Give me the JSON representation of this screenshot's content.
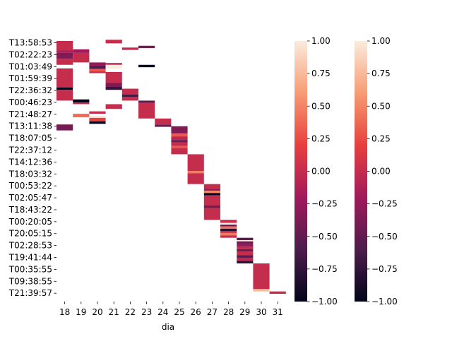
{
  "chart_data": {
    "type": "heatmap",
    "xlabel": "dia",
    "ylabel": "",
    "x_categories": [
      "18",
      "19",
      "20",
      "21",
      "22",
      "23",
      "24",
      "25",
      "26",
      "27",
      "28",
      "29",
      "30",
      "31"
    ],
    "y_tick_labels": [
      "T13:58:53",
      "T02:22:23",
      "T01:03:49",
      "T01:59:39",
      "T22:36:32",
      "T00:46:23",
      "T21:48:27",
      "T13:11:38",
      "T18:07:05",
      "T22:37:12",
      "T14:12:36",
      "T18:03:32",
      "T00:53:22",
      "T02:05:47",
      "T18:43:22",
      "T00:20:05",
      "T20:05:15",
      "T02:28:53",
      "T19:41:44",
      "T00:35:55",
      "T09:38:55",
      "T21:39:57"
    ],
    "value_range": [
      -1.0,
      1.0
    ],
    "colorbar_ticks": [
      "1.00",
      "0.75",
      "0.50",
      "0.25",
      "0.00",
      "−0.25",
      "−0.50",
      "−0.75",
      "−1.00"
    ],
    "colorbar_tick_values": [
      1.0,
      0.75,
      0.5,
      0.25,
      0.0,
      -0.25,
      -0.5,
      -0.75,
      -1.0
    ],
    "colorbar_count": 2,
    "colormap": "rocket",
    "segments": [
      {
        "day": "18",
        "row_start": 0,
        "row_end": 0.8,
        "value": 0.0
      },
      {
        "day": "18",
        "row_start": 0.8,
        "row_end": 1.0,
        "value": -0.15
      },
      {
        "day": "18",
        "row_start": 1.0,
        "row_end": 1.5,
        "value": -0.35
      },
      {
        "day": "18",
        "row_start": 1.5,
        "row_end": 2.0,
        "value": 0.0
      },
      {
        "day": "18",
        "row_start": 2.3,
        "row_end": 3.9,
        "value": 0.0
      },
      {
        "day": "18",
        "row_start": 3.9,
        "row_end": 4.1,
        "value": -1.0
      },
      {
        "day": "18",
        "row_start": 4.1,
        "row_end": 5.0,
        "value": 0.0
      },
      {
        "day": "18",
        "row_start": 7.0,
        "row_end": 7.5,
        "value": -0.4
      },
      {
        "day": "19",
        "row_start": 0.7,
        "row_end": 1.0,
        "value": -0.2
      },
      {
        "day": "19",
        "row_start": 1.0,
        "row_end": 1.8,
        "value": 0.0
      },
      {
        "day": "19",
        "row_start": 4.9,
        "row_end": 5.15,
        "value": -1.0
      },
      {
        "day": "19",
        "row_start": 5.15,
        "row_end": 5.3,
        "value": 0.0
      },
      {
        "day": "19",
        "row_start": 6.1,
        "row_end": 6.4,
        "value": 0.4
      },
      {
        "day": "20",
        "row_start": 1.8,
        "row_end": 2.1,
        "value": -0.25
      },
      {
        "day": "20",
        "row_start": 2.1,
        "row_end": 2.35,
        "value": -0.6
      },
      {
        "day": "20",
        "row_start": 2.35,
        "row_end": 2.55,
        "value": 0.3
      },
      {
        "day": "20",
        "row_start": 2.55,
        "row_end": 2.7,
        "value": 0.0
      },
      {
        "day": "20",
        "row_start": 5.9,
        "row_end": 6.1,
        "value": 0.0
      },
      {
        "day": "20",
        "row_start": 6.3,
        "row_end": 6.45,
        "value": 0.95
      },
      {
        "day": "20",
        "row_start": 6.45,
        "row_end": 6.75,
        "value": 0.2
      },
      {
        "day": "20",
        "row_start": 6.75,
        "row_end": 6.95,
        "value": -0.95
      },
      {
        "day": "21",
        "row_start": -0.1,
        "row_end": 0.2,
        "value": 0.0
      },
      {
        "day": "21",
        "row_start": 1.85,
        "row_end": 2.0,
        "value": -0.1
      },
      {
        "day": "21",
        "row_start": 2.0,
        "row_end": 2.3,
        "value": 1.0
      },
      {
        "day": "21",
        "row_start": 2.6,
        "row_end": 3.5,
        "value": 0.0
      },
      {
        "day": "21",
        "row_start": 3.5,
        "row_end": 3.85,
        "value": -0.35
      },
      {
        "day": "21",
        "row_start": 3.85,
        "row_end": 4.1,
        "value": -0.75
      },
      {
        "day": "21",
        "row_start": 5.3,
        "row_end": 5.7,
        "value": 0.0
      },
      {
        "day": "22",
        "row_start": 0.55,
        "row_end": 0.75,
        "value": 0.0
      },
      {
        "day": "22",
        "row_start": 4.0,
        "row_end": 4.5,
        "value": 0.0
      },
      {
        "day": "22",
        "row_start": 4.5,
        "row_end": 4.7,
        "value": -0.65
      },
      {
        "day": "22",
        "row_start": 4.7,
        "row_end": 5.0,
        "value": 0.0
      },
      {
        "day": "23",
        "row_start": 0.4,
        "row_end": 0.6,
        "value": -0.4
      },
      {
        "day": "23",
        "row_start": 2.0,
        "row_end": 2.2,
        "value": -1.0
      },
      {
        "day": "23",
        "row_start": 5.0,
        "row_end": 5.2,
        "value": -0.5
      },
      {
        "day": "23",
        "row_start": 5.2,
        "row_end": 6.5,
        "value": 0.0
      },
      {
        "day": "24",
        "row_start": 6.5,
        "row_end": 7.0,
        "value": 0.0
      },
      {
        "day": "24",
        "row_start": 7.0,
        "row_end": 7.2,
        "value": -0.45
      },
      {
        "day": "25",
        "row_start": 7.15,
        "row_end": 7.75,
        "value": -0.35
      },
      {
        "day": "25",
        "row_start": 7.75,
        "row_end": 8.0,
        "value": 0.3
      },
      {
        "day": "25",
        "row_start": 8.0,
        "row_end": 8.3,
        "value": -0.05
      },
      {
        "day": "25",
        "row_start": 8.3,
        "row_end": 8.5,
        "value": -0.45
      },
      {
        "day": "25",
        "row_start": 8.5,
        "row_end": 8.8,
        "value": 0.0
      },
      {
        "day": "25",
        "row_start": 8.8,
        "row_end": 9.0,
        "value": 0.3
      },
      {
        "day": "25",
        "row_start": 9.0,
        "row_end": 9.5,
        "value": 0.0
      },
      {
        "day": "26",
        "row_start": 9.5,
        "row_end": 10.9,
        "value": 0.0
      },
      {
        "day": "26",
        "row_start": 10.9,
        "row_end": 11.1,
        "value": 0.45
      },
      {
        "day": "26",
        "row_start": 11.1,
        "row_end": 12.0,
        "value": 0.0
      },
      {
        "day": "27",
        "row_start": 12.0,
        "row_end": 12.4,
        "value": 0.0
      },
      {
        "day": "27",
        "row_start": 12.4,
        "row_end": 12.55,
        "value": -0.3
      },
      {
        "day": "27",
        "row_start": 12.55,
        "row_end": 12.75,
        "value": 0.5
      },
      {
        "day": "27",
        "row_start": 12.75,
        "row_end": 12.95,
        "value": -0.95
      },
      {
        "day": "27",
        "row_start": 12.95,
        "row_end": 13.8,
        "value": 0.0
      },
      {
        "day": "27",
        "row_start": 13.8,
        "row_end": 14.0,
        "value": -0.45
      },
      {
        "day": "27",
        "row_start": 14.0,
        "row_end": 15.0,
        "value": 0.0
      },
      {
        "day": "28",
        "row_start": 15.0,
        "row_end": 15.25,
        "value": 0.0
      },
      {
        "day": "28",
        "row_start": 15.25,
        "row_end": 15.4,
        "value": 1.0
      },
      {
        "day": "28",
        "row_start": 15.4,
        "row_end": 15.55,
        "value": -0.5
      },
      {
        "day": "28",
        "row_start": 15.55,
        "row_end": 15.75,
        "value": 0.4
      },
      {
        "day": "28",
        "row_start": 15.75,
        "row_end": 15.95,
        "value": -0.8
      },
      {
        "day": "28",
        "row_start": 15.95,
        "row_end": 16.1,
        "value": 0.0
      },
      {
        "day": "28",
        "row_start": 16.1,
        "row_end": 16.3,
        "value": 0.45
      },
      {
        "day": "28",
        "row_start": 16.3,
        "row_end": 16.5,
        "value": 0.0
      },
      {
        "day": "29",
        "row_start": 16.5,
        "row_end": 16.7,
        "value": -0.55
      },
      {
        "day": "29",
        "row_start": 16.7,
        "row_end": 16.8,
        "value": 1.0
      },
      {
        "day": "29",
        "row_start": 16.8,
        "row_end": 17.0,
        "value": -0.45
      },
      {
        "day": "29",
        "row_start": 17.0,
        "row_end": 17.25,
        "value": -0.3
      },
      {
        "day": "29",
        "row_start": 17.25,
        "row_end": 17.45,
        "value": 0.0
      },
      {
        "day": "29",
        "row_start": 17.45,
        "row_end": 17.65,
        "value": -0.45
      },
      {
        "day": "29",
        "row_start": 17.65,
        "row_end": 17.95,
        "value": 0.0
      },
      {
        "day": "29",
        "row_start": 17.95,
        "row_end": 18.2,
        "value": -0.5
      },
      {
        "day": "29",
        "row_start": 18.2,
        "row_end": 18.45,
        "value": -0.05
      },
      {
        "day": "29",
        "row_start": 18.45,
        "row_end": 18.65,
        "value": -0.8
      },
      {
        "day": "30",
        "row_start": 18.65,
        "row_end": 20.8,
        "value": 0.0
      },
      {
        "day": "30",
        "row_start": 20.8,
        "row_end": 21.0,
        "value": 0.75
      },
      {
        "day": "31",
        "row_start": 21.0,
        "row_end": 21.2,
        "value": 0.0
      }
    ]
  },
  "colormap_stops": [
    "#03051a",
    "#4c1d4b",
    "#a11a5b",
    "#e83f3f",
    "#f69c73",
    "#faebdd"
  ]
}
